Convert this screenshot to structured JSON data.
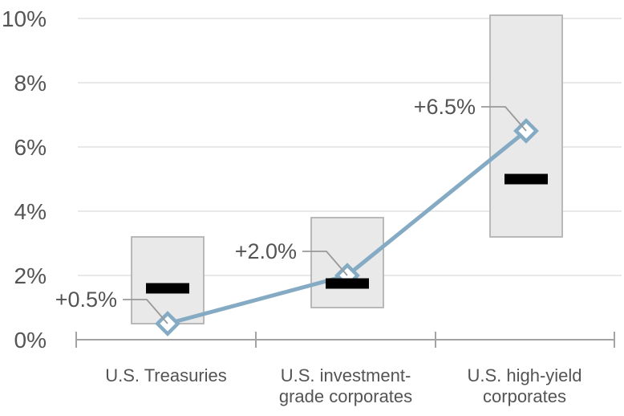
{
  "chart_data": {
    "type": "range-bar-with-markers",
    "title": "",
    "xlabel": "",
    "ylabel": "",
    "grid": true,
    "legend": null,
    "ylim": [
      0,
      10
    ],
    "categories": [
      "U.S. Treasuries",
      "U.S. investment-grade corporates",
      "U.S. high-yield corporates"
    ],
    "category_label_lines": [
      [
        "U.S. Treasuries"
      ],
      [
        "U.S. investment-",
        "grade corporates"
      ],
      [
        "U.S. high-yield",
        "corporates"
      ]
    ],
    "series": [
      {
        "name": "range-low",
        "values": [
          0.5,
          1.0,
          3.2
        ]
      },
      {
        "name": "range-high",
        "values": [
          3.2,
          3.8,
          10.1
        ]
      },
      {
        "name": "median-bar",
        "values": [
          1.6,
          1.75,
          5.0
        ]
      },
      {
        "name": "current-marker",
        "values": [
          0.5,
          2.0,
          6.5
        ]
      }
    ],
    "annotations": [
      {
        "text": "+0.5%",
        "category_index": 0,
        "value": 0.5
      },
      {
        "text": "+2.0%",
        "category_index": 1,
        "value": 2.0
      },
      {
        "text": "+6.5%",
        "category_index": 2,
        "value": 6.5
      }
    ],
    "y_axis": {
      "min": 0,
      "max": 10,
      "ticks": [
        {
          "value": 10,
          "label": "10%"
        },
        {
          "value": 8,
          "label": "8%"
        },
        {
          "value": 6,
          "label": "6%"
        },
        {
          "value": 4,
          "label": "4%"
        },
        {
          "value": 2,
          "label": "2%"
        },
        {
          "value": 0,
          "label": "0%"
        }
      ]
    },
    "colors": {
      "range_box_fill": "#e9e9e9",
      "range_box_border": "#b3b3b3",
      "median_bar": "#000000",
      "trend_line": "#85abc4",
      "marker_fill": "#ffffff",
      "marker_border": "#85abc4",
      "gridline": "#d9d9d9",
      "axis": "#a3a3a3",
      "text": "#545454",
      "leader_line": "#999999"
    }
  }
}
